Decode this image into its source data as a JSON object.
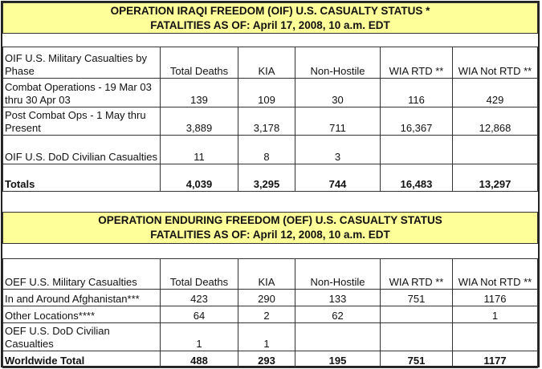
{
  "sections": [
    {
      "id": "oif",
      "title_line1": "OPERATION IRAQI FREEDOM (OIF)  U.S. CASUALTY STATUS *",
      "title_line2": "FATALITIES AS OF: April 17, 2008, 10 a.m. EDT",
      "headers": [
        "OIF U.S. Military Casualties by Phase",
        "Total Deaths",
        "KIA",
        "Non-Hostile",
        "WIA RTD **",
        "WIA Not RTD **"
      ],
      "rows": [
        {
          "label": "Combat Operations - 19 Mar 03 thru 30 Apr 03",
          "values": [
            "139",
            "109",
            "30",
            "116",
            "429"
          ]
        },
        {
          "label": "Post Combat Ops - 1 May thru Present",
          "values": [
            "3,889",
            "3,178",
            "711",
            "16,367",
            "12,868"
          ]
        },
        {
          "label": "OIF U.S. DoD Civilian Casualties",
          "values": [
            "11",
            "8",
            "3",
            "",
            ""
          ]
        },
        {
          "label": "Totals",
          "values": [
            "4,039",
            "3,295",
            "744",
            "16,483",
            "13,297"
          ],
          "bold": true
        }
      ]
    },
    {
      "id": "oef",
      "title_line1": "OPERATION ENDURING FREEDOM (OEF) U.S. CASUALTY STATUS",
      "title_line2": "FATALITIES AS OF: April 12, 2008, 10 a.m. EDT",
      "headers": [
        "OEF U.S. Military Casualties",
        "Total Deaths",
        "KIA",
        "Non-Hostile",
        "WIA RTD **",
        "WIA Not RTD **"
      ],
      "rows": [
        {
          "label": "In and Around Afghanistan***",
          "values": [
            "423",
            "290",
            "133",
            "751",
            "1176"
          ]
        },
        {
          "label": "Other Locations****",
          "values": [
            "64",
            "2",
            "62",
            "",
            "1"
          ]
        },
        {
          "label": "OEF U.S. DoD Civilian Casualties",
          "values": [
            "1",
            "1",
            "",
            "",
            ""
          ]
        },
        {
          "label": "Worldwide Total",
          "values": [
            "488",
            "293",
            "195",
            "751",
            "1177"
          ],
          "bold": true
        }
      ]
    }
  ],
  "colors": {
    "title_bg": "#ffff99"
  }
}
